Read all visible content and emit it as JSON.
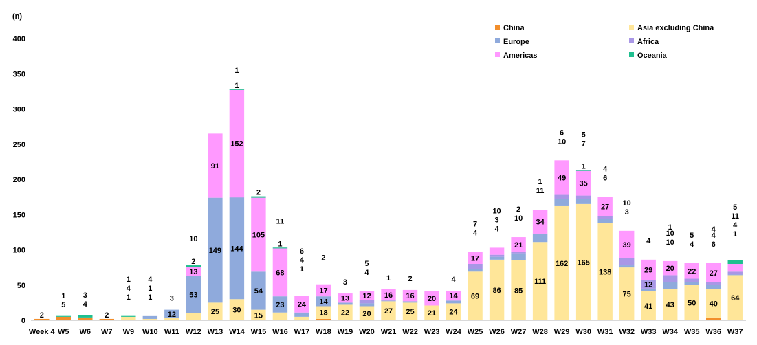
{
  "chart_data": {
    "type": "bar",
    "stacked": true,
    "unit_label": "(n)",
    "ylim": [
      0,
      400
    ],
    "yticks": [
      0,
      50,
      100,
      150,
      200,
      250,
      300,
      350,
      400
    ],
    "categories": [
      "Week 4",
      "W5",
      "W6",
      "W7",
      "W9",
      "W10",
      "W11",
      "W12",
      "W13",
      "W14",
      "W15",
      "W16",
      "W17",
      "W18",
      "W19",
      "W20",
      "W21",
      "W22",
      "W23",
      "W24",
      "W25",
      "W26",
      "W27",
      "W28",
      "W29",
      "W30",
      "W31",
      "W32",
      "W33",
      "W34",
      "W35",
      "W36",
      "W37"
    ],
    "series": [
      {
        "name": "China",
        "color": "#F28E2B",
        "values": [
          2,
          5,
          4,
          2,
          1,
          1,
          0,
          0,
          0,
          0,
          0,
          0,
          1,
          2,
          0,
          0,
          0,
          0,
          0,
          0,
          0,
          0,
          0,
          0,
          0,
          0,
          0,
          0,
          0,
          1,
          0,
          4,
          0
        ]
      },
      {
        "name": "Asia excluding China",
        "color": "#FFE699",
        "values": [
          0,
          0,
          0,
          0,
          4,
          1,
          3,
          10,
          25,
          30,
          15,
          11,
          4,
          18,
          22,
          20,
          27,
          25,
          21,
          24,
          69,
          86,
          85,
          111,
          162,
          165,
          138,
          75,
          41,
          43,
          50,
          40,
          64
        ]
      },
      {
        "name": "Europe",
        "color": "#8FAADC",
        "values": [
          0,
          0,
          0,
          0,
          0,
          4,
          12,
          53,
          149,
          144,
          54,
          23,
          6,
          14,
          3,
          4,
          1,
          2,
          0,
          4,
          4,
          4,
          10,
          11,
          10,
          7,
          6,
          3,
          4,
          10,
          4,
          6,
          1
        ]
      },
      {
        "name": "Africa",
        "color": "#A997E6",
        "values": [
          0,
          0,
          0,
          0,
          0,
          0,
          0,
          0,
          0,
          1,
          0,
          0,
          0,
          0,
          0,
          5,
          0,
          0,
          0,
          0,
          7,
          3,
          2,
          1,
          6,
          5,
          4,
          10,
          12,
          10,
          5,
          4,
          4
        ]
      },
      {
        "name": "Americas",
        "color": "#FF99FF",
        "values": [
          0,
          0,
          0,
          0,
          0,
          0,
          0,
          13,
          91,
          152,
          105,
          68,
          24,
          17,
          13,
          12,
          16,
          16,
          20,
          14,
          17,
          10,
          21,
          34,
          49,
          35,
          27,
          39,
          29,
          20,
          22,
          27,
          11
        ]
      },
      {
        "name": "Oceania",
        "color": "#1FBF8F",
        "values": [
          0,
          1,
          3,
          0,
          1,
          0,
          0,
          2,
          0,
          1,
          2,
          1,
          0,
          0,
          0,
          0,
          0,
          0,
          0,
          0,
          0,
          0,
          0,
          0,
          0,
          1,
          0,
          0,
          0,
          0,
          0,
          0,
          5
        ]
      }
    ],
    "data_labels": [
      {
        "cat": 0,
        "text": "2"
      },
      {
        "cat": 1,
        "text": "5"
      },
      {
        "cat": 1,
        "text": "1"
      },
      {
        "cat": 2,
        "text": "4"
      },
      {
        "cat": 2,
        "text": "3"
      },
      {
        "cat": 3,
        "text": "2"
      },
      {
        "cat": 4,
        "text": "1"
      },
      {
        "cat": 4,
        "text": "4"
      },
      {
        "cat": 4,
        "text": "1"
      },
      {
        "cat": 5,
        "text": "1"
      },
      {
        "cat": 5,
        "text": "1"
      },
      {
        "cat": 5,
        "text": "4"
      },
      {
        "cat": 6,
        "text": "3"
      },
      {
        "cat": 6,
        "text": "12"
      },
      {
        "cat": 7,
        "text": "10"
      },
      {
        "cat": 7,
        "text": "53"
      },
      {
        "cat": 7,
        "text": "13"
      },
      {
        "cat": 7,
        "text": "2"
      },
      {
        "cat": 8,
        "text": "25"
      },
      {
        "cat": 8,
        "text": "149"
      },
      {
        "cat": 8,
        "text": "91"
      },
      {
        "cat": 9,
        "text": "30"
      },
      {
        "cat": 9,
        "text": "144"
      },
      {
        "cat": 9,
        "text": "1"
      },
      {
        "cat": 9,
        "text": "152"
      },
      {
        "cat": 9,
        "text": "1"
      },
      {
        "cat": 10,
        "text": "15"
      },
      {
        "cat": 10,
        "text": "54"
      },
      {
        "cat": 10,
        "text": "105"
      },
      {
        "cat": 10,
        "text": "2"
      },
      {
        "cat": 11,
        "text": "11"
      },
      {
        "cat": 11,
        "text": "23"
      },
      {
        "cat": 11,
        "text": "68"
      },
      {
        "cat": 11,
        "text": "1"
      },
      {
        "cat": 12,
        "text": "1"
      },
      {
        "cat": 12,
        "text": "4"
      },
      {
        "cat": 12,
        "text": "6"
      },
      {
        "cat": 12,
        "text": "24"
      },
      {
        "cat": 13,
        "text": "2"
      },
      {
        "cat": 13,
        "text": "18"
      },
      {
        "cat": 13,
        "text": "14"
      },
      {
        "cat": 13,
        "text": "17"
      },
      {
        "cat": 14,
        "text": "22"
      },
      {
        "cat": 14,
        "text": "3"
      },
      {
        "cat": 14,
        "text": "13"
      },
      {
        "cat": 15,
        "text": "20"
      },
      {
        "cat": 15,
        "text": "4"
      },
      {
        "cat": 15,
        "text": "5"
      },
      {
        "cat": 15,
        "text": "12"
      },
      {
        "cat": 16,
        "text": "27"
      },
      {
        "cat": 16,
        "text": "1"
      },
      {
        "cat": 16,
        "text": "16"
      },
      {
        "cat": 17,
        "text": "25"
      },
      {
        "cat": 17,
        "text": "2"
      },
      {
        "cat": 17,
        "text": "16"
      },
      {
        "cat": 18,
        "text": "21"
      },
      {
        "cat": 18,
        "text": "20"
      },
      {
        "cat": 19,
        "text": "24"
      },
      {
        "cat": 19,
        "text": "4"
      },
      {
        "cat": 19,
        "text": "14"
      },
      {
        "cat": 20,
        "text": "69"
      },
      {
        "cat": 20,
        "text": "4"
      },
      {
        "cat": 20,
        "text": "7"
      },
      {
        "cat": 20,
        "text": "17"
      },
      {
        "cat": 21,
        "text": "86"
      },
      {
        "cat": 21,
        "text": "4"
      },
      {
        "cat": 21,
        "text": "3"
      },
      {
        "cat": 21,
        "text": "10"
      },
      {
        "cat": 22,
        "text": "85"
      },
      {
        "cat": 22,
        "text": "10"
      },
      {
        "cat": 22,
        "text": "2"
      },
      {
        "cat": 22,
        "text": "21"
      },
      {
        "cat": 23,
        "text": "111"
      },
      {
        "cat": 23,
        "text": "11"
      },
      {
        "cat": 23,
        "text": "1"
      },
      {
        "cat": 23,
        "text": "34"
      },
      {
        "cat": 24,
        "text": "162"
      },
      {
        "cat": 24,
        "text": "10"
      },
      {
        "cat": 24,
        "text": "6"
      },
      {
        "cat": 24,
        "text": "49"
      },
      {
        "cat": 25,
        "text": "165"
      },
      {
        "cat": 25,
        "text": "7"
      },
      {
        "cat": 25,
        "text": "5"
      },
      {
        "cat": 25,
        "text": "35"
      },
      {
        "cat": 25,
        "text": "1"
      },
      {
        "cat": 26,
        "text": "138"
      },
      {
        "cat": 26,
        "text": "6"
      },
      {
        "cat": 26,
        "text": "4"
      },
      {
        "cat": 26,
        "text": "27"
      },
      {
        "cat": 27,
        "text": "75"
      },
      {
        "cat": 27,
        "text": "3"
      },
      {
        "cat": 27,
        "text": "10"
      },
      {
        "cat": 27,
        "text": "39"
      },
      {
        "cat": 28,
        "text": "41"
      },
      {
        "cat": 28,
        "text": "4"
      },
      {
        "cat": 28,
        "text": "12"
      },
      {
        "cat": 28,
        "text": "29"
      },
      {
        "cat": 29,
        "text": "1"
      },
      {
        "cat": 29,
        "text": "43"
      },
      {
        "cat": 29,
        "text": "10"
      },
      {
        "cat": 29,
        "text": "10"
      },
      {
        "cat": 29,
        "text": "20"
      },
      {
        "cat": 30,
        "text": "50"
      },
      {
        "cat": 30,
        "text": "4"
      },
      {
        "cat": 30,
        "text": "5"
      },
      {
        "cat": 30,
        "text": "22"
      },
      {
        "cat": 31,
        "text": "4"
      },
      {
        "cat": 31,
        "text": "40"
      },
      {
        "cat": 31,
        "text": "6"
      },
      {
        "cat": 31,
        "text": "4"
      },
      {
        "cat": 31,
        "text": "27"
      },
      {
        "cat": 32,
        "text": "64"
      },
      {
        "cat": 32,
        "text": "1"
      },
      {
        "cat": 32,
        "text": "4"
      },
      {
        "cat": 32,
        "text": "11"
      },
      {
        "cat": 32,
        "text": "5"
      }
    ],
    "legend": [
      {
        "label": "China",
        "color": "#F28E2B"
      },
      {
        "label": "Asia excluding China",
        "color": "#FFE699"
      },
      {
        "label": "Europe",
        "color": "#8FAADC"
      },
      {
        "label": "Africa",
        "color": "#A997E6"
      },
      {
        "label": "Americas",
        "color": "#FF99FF"
      },
      {
        "label": "Oceania",
        "color": "#1FBF8F"
      }
    ]
  }
}
